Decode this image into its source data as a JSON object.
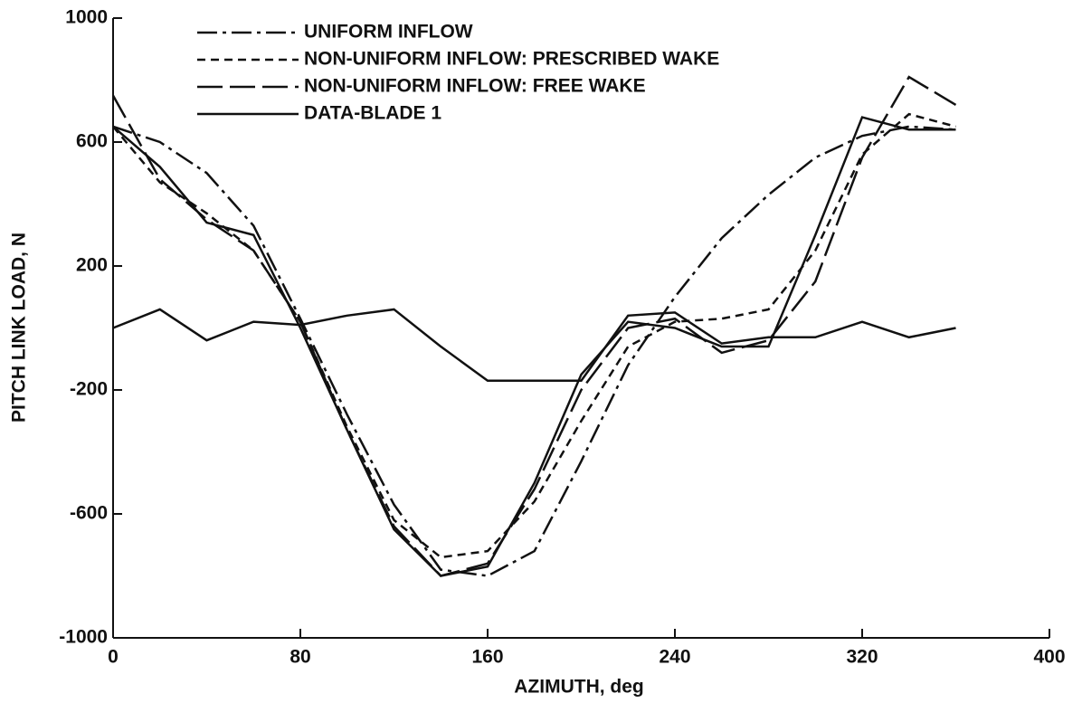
{
  "chart_data": {
    "type": "line",
    "xlabel": "AZIMUTH, deg",
    "ylabel": "PITCH LINK LOAD, N",
    "x": [
      0,
      20,
      40,
      60,
      80,
      100,
      120,
      140,
      160,
      180,
      200,
      220,
      240,
      260,
      280,
      300,
      320,
      340,
      360
    ],
    "series": [
      {
        "name": "UNIFORM INFLOW",
        "color": "#111111",
        "dash": "dashdot",
        "values": [
          650,
          600,
          500,
          330,
          30,
          -280,
          -570,
          -780,
          -800,
          -720,
          -430,
          -120,
          100,
          290,
          430,
          550,
          620,
          650,
          640
        ]
      },
      {
        "name": "NON-UNIFORM INFLOW: PRESCRIBED WAKE",
        "color": "#111111",
        "dash": "dash",
        "values": [
          650,
          470,
          370,
          250,
          20,
          -320,
          -620,
          -740,
          -720,
          -560,
          -300,
          -60,
          20,
          30,
          60,
          250,
          560,
          690,
          650
        ]
      },
      {
        "name": "NON-UNIFORM INFLOW: FREE WAKE",
        "color": "#111111",
        "dash": "longdash",
        "values": [
          750,
          480,
          350,
          250,
          20,
          -330,
          -640,
          -800,
          -760,
          -520,
          -200,
          0,
          30,
          -80,
          -40,
          150,
          550,
          810,
          720
        ]
      },
      {
        "name": "DATA-BLADE 1",
        "color": "#111111",
        "dash": "solid",
        "values": [
          650,
          520,
          340,
          300,
          0,
          -330,
          -650,
          -800,
          -770,
          -500,
          -150,
          20,
          0,
          -60,
          -60,
          300,
          680,
          640,
          640
        ]
      },
      {
        "color": "#111111",
        "dash": "solid",
        "values": [
          0,
          60,
          -40,
          20,
          10,
          40,
          60,
          -60,
          -170,
          -170,
          -170,
          40,
          50,
          -50,
          -30,
          -30,
          20,
          -30,
          0
        ]
      }
    ],
    "xlim": [
      0,
      400
    ],
    "xticks": [
      0,
      80,
      160,
      240,
      320,
      400
    ],
    "ylim": [
      -1000,
      1000
    ],
    "yticks": [
      1000,
      600,
      200,
      -200,
      -600,
      -1000
    ],
    "legend": "top-left",
    "grid": false
  }
}
